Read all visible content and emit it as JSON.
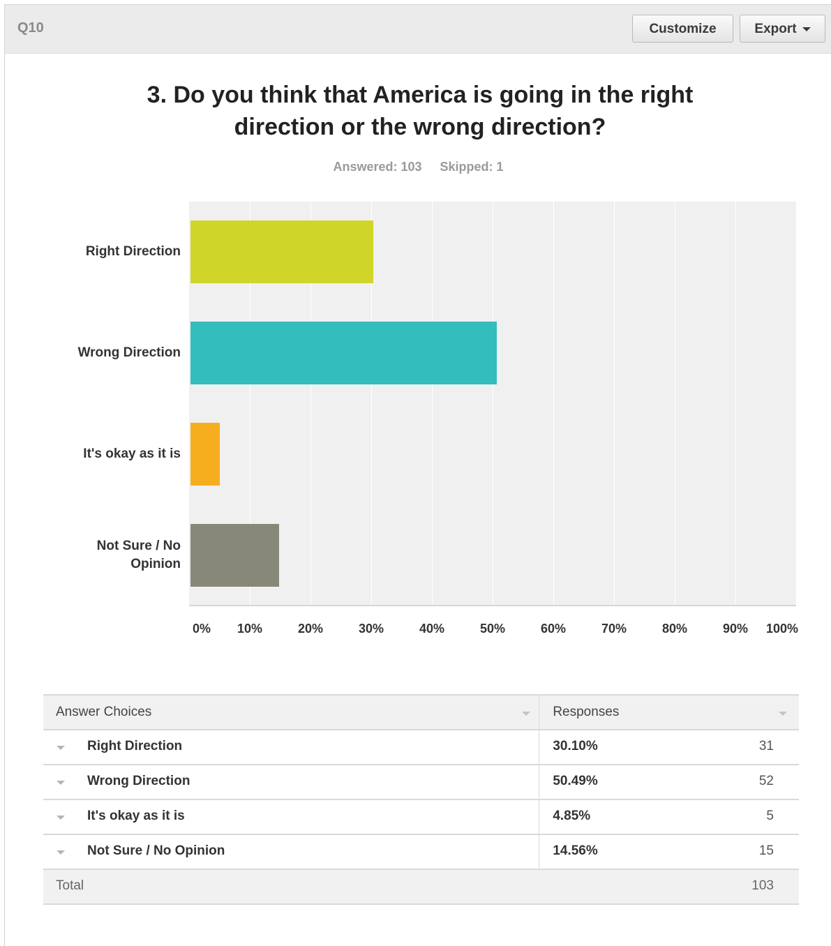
{
  "header": {
    "question_number": "Q10",
    "customize_label": "Customize",
    "export_label": "Export"
  },
  "question": {
    "title": "3. Do you think that America is going in the right direction or the wrong direction?",
    "answered": "Answered: 103",
    "skipped": "Skipped: 1"
  },
  "chart_data": {
    "type": "bar",
    "orientation": "horizontal",
    "categories": [
      "Right Direction",
      "Wrong Direction",
      "It's okay as it is",
      "Not Sure / No Opinion"
    ],
    "values": [
      30.1,
      50.49,
      4.85,
      14.56
    ],
    "colors": [
      "#d0d52a",
      "#33bdbd",
      "#f6ae1e",
      "#878877"
    ],
    "xlim": [
      0,
      100
    ],
    "x_tick_labels": [
      "0%",
      "10%",
      "20%",
      "30%",
      "40%",
      "50%",
      "60%",
      "70%",
      "80%",
      "90%",
      "100%"
    ],
    "grid": true
  },
  "table": {
    "col_answer": "Answer Choices",
    "col_responses": "Responses",
    "rows": [
      {
        "label": "Right Direction",
        "percent": "30.10%",
        "count": "31"
      },
      {
        "label": "Wrong Direction",
        "percent": "50.49%",
        "count": "52"
      },
      {
        "label": "It's okay as it is",
        "percent": "4.85%",
        "count": "5"
      },
      {
        "label": "Not Sure / No Opinion",
        "percent": "14.56%",
        "count": "15"
      }
    ],
    "total_label": "Total",
    "total_count": "103"
  }
}
